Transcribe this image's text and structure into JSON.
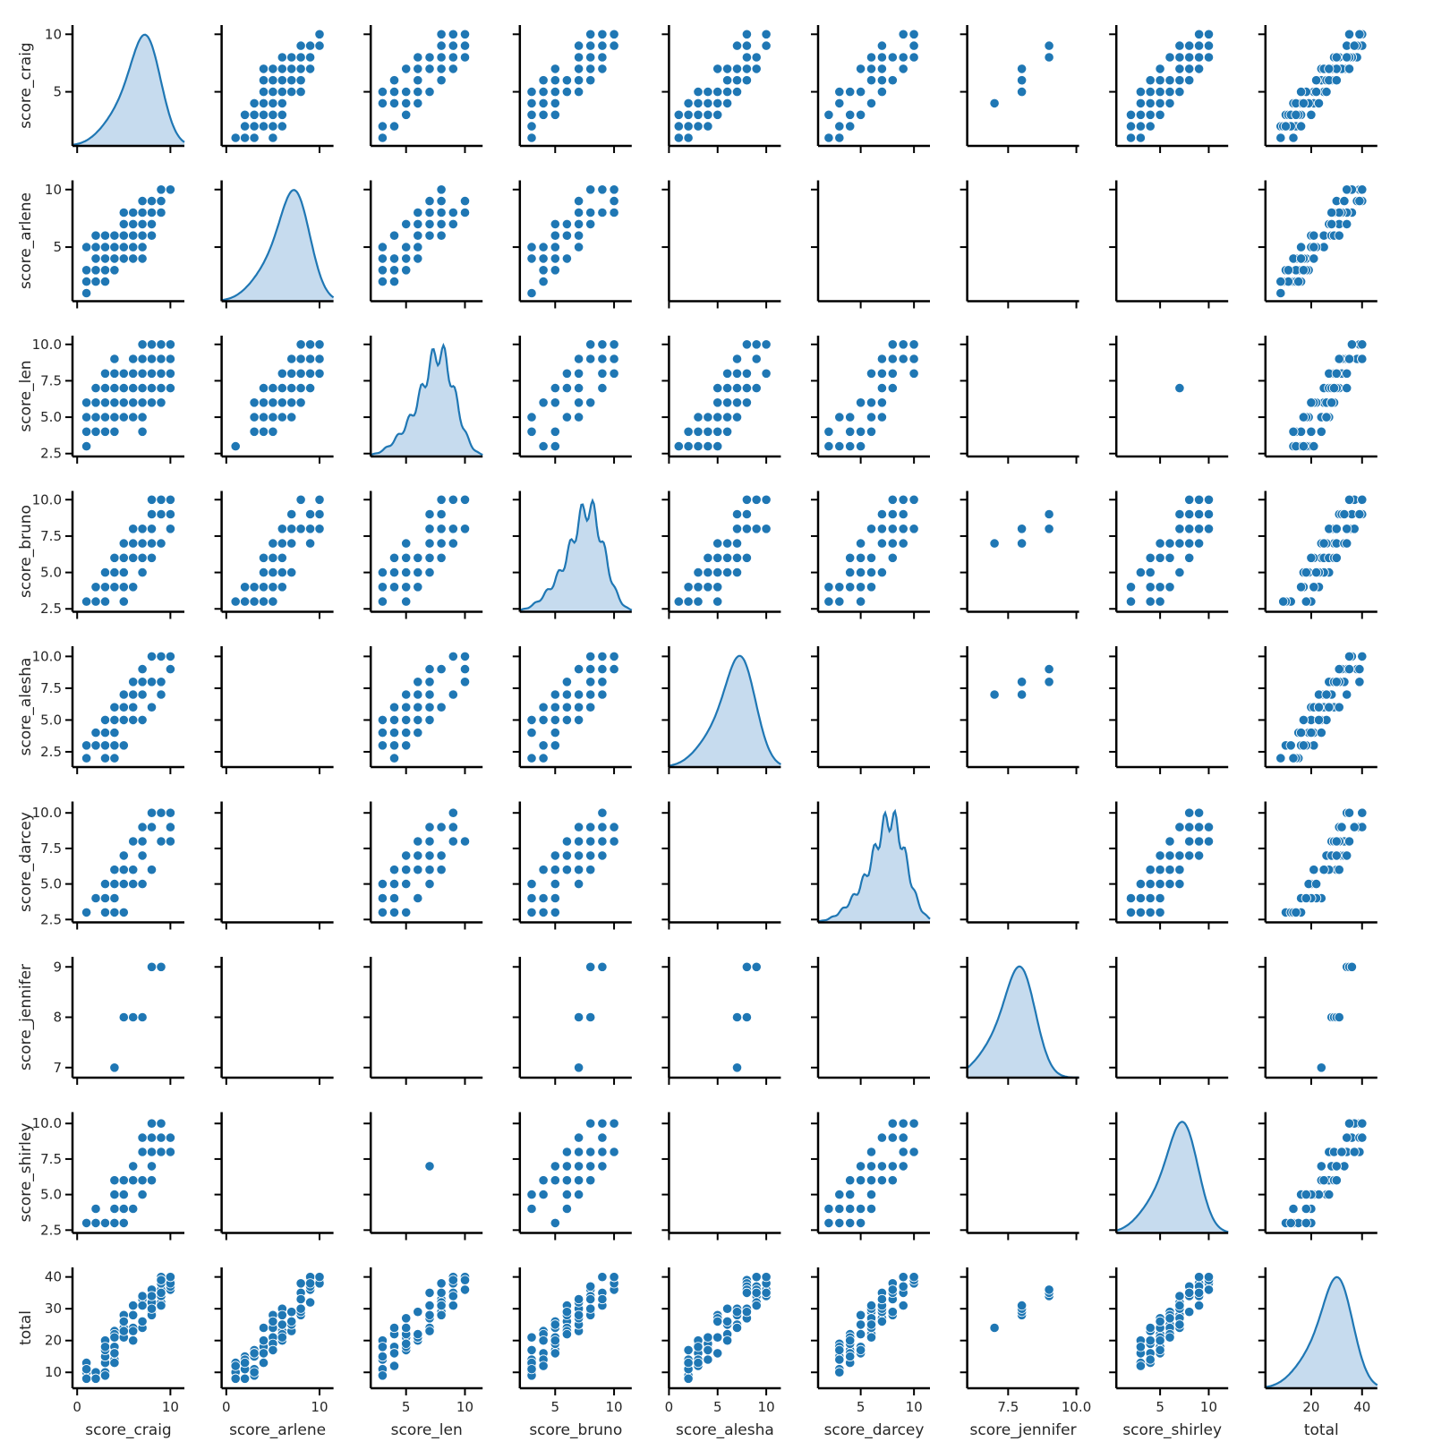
{
  "chart_data": {
    "type": "pairplot",
    "title": "",
    "variables": [
      "score_craig",
      "score_arlene",
      "score_len",
      "score_bruno",
      "score_alesha",
      "score_darcey",
      "score_jennifer",
      "score_shirley",
      "total"
    ],
    "diag_kind": "kde",
    "offdiag_kind": "scatter",
    "point_color": "#1f77b4",
    "kde_fill": "#c6dbee",
    "axis_ranges": {
      "score_craig": {
        "lim": [
          -0.5,
          11.5
        ],
        "ticks": [
          0,
          10
        ],
        "ylim": [
          0.3,
          10.8
        ],
        "yticks": [
          5,
          10
        ]
      },
      "score_arlene": {
        "lim": [
          -0.5,
          11.5
        ],
        "ticks": [
          0,
          10
        ],
        "ylim": [
          0.3,
          10.8
        ],
        "yticks": [
          5,
          10
        ]
      },
      "score_len": {
        "lim": [
          2.0,
          11.5
        ],
        "ticks": [
          5,
          10
        ],
        "ylim": [
          2.3,
          10.6
        ],
        "yticks": [
          2.5,
          5.0,
          7.5,
          10.0
        ]
      },
      "score_bruno": {
        "lim": [
          2.0,
          11.5
        ],
        "ticks": [
          5,
          10
        ],
        "ylim": [
          2.3,
          10.6
        ],
        "yticks": [
          2.5,
          5.0,
          7.5,
          10.0
        ]
      },
      "score_alesha": {
        "lim": [
          0.0,
          11.5
        ],
        "ticks": [
          0,
          5,
          10
        ],
        "ylim": [
          1.3,
          10.8
        ],
        "yticks": [
          2.5,
          5.0,
          7.5,
          10.0
        ]
      },
      "score_darcey": {
        "lim": [
          1.0,
          11.5
        ],
        "ticks": [
          5,
          10
        ],
        "ylim": [
          2.3,
          10.8
        ],
        "yticks": [
          2.5,
          5.0,
          7.5,
          10.0
        ]
      },
      "score_jennifer": {
        "lim": [
          6.0,
          10.1
        ],
        "ticks": [
          7.5,
          10.0
        ],
        "ylim": [
          6.8,
          9.2
        ],
        "yticks": [
          7,
          8,
          9
        ]
      },
      "score_shirley": {
        "lim": [
          0.5,
          12.0
        ],
        "ticks": [
          5,
          10
        ],
        "ylim": [
          2.3,
          10.8
        ],
        "yticks": [
          2.5,
          5.0,
          7.5,
          10.0
        ]
      },
      "total": {
        "lim": [
          2,
          46
        ],
        "ticks": [
          20,
          40
        ],
        "ylim": [
          5,
          43
        ],
        "yticks": [
          10,
          20,
          30,
          40
        ]
      }
    },
    "tick_labels": {
      "score_craig": [
        "0",
        "10"
      ],
      "score_arlene": [
        "0",
        "10"
      ],
      "score_len": [
        "5",
        "10"
      ],
      "score_bruno": [
        "5",
        "10"
      ],
      "score_alesha": [
        "0",
        "5",
        "10"
      ],
      "score_darcey": [
        "5",
        "10"
      ],
      "score_jennifer": [
        "7.5",
        "10.0"
      ],
      "score_shirley": [
        "5",
        "10"
      ],
      "total": [
        "20",
        "40"
      ]
    },
    "ytick_labels": {
      "score_craig": [
        "5",
        "10"
      ],
      "score_arlene": [
        "5",
        "10"
      ],
      "score_len": [
        "2.5",
        "5.0",
        "7.5",
        "10.0"
      ],
      "score_bruno": [
        "2.5",
        "5.0",
        "7.5",
        "10.0"
      ],
      "score_alesha": [
        "2.5",
        "5.0",
        "7.5",
        "10.0"
      ],
      "score_darcey": [
        "2.5",
        "5.0",
        "7.5",
        "10.0"
      ],
      "score_jennifer": [
        "7",
        "8",
        "9"
      ],
      "score_shirley": [
        "2.5",
        "5.0",
        "7.5",
        "10.0"
      ],
      "total": [
        "10",
        "20",
        "30",
        "40"
      ]
    },
    "diagonal_kde_peaks": {
      "score_craig": 7.5,
      "score_arlene": 7.5,
      "score_len": 8.0,
      "score_bruno": 8.0,
      "score_alesha": 7.5,
      "score_darcey": 8.0,
      "score_jennifer": 8.0,
      "score_shirley": 7.5,
      "total": 31
    },
    "empty_panels": [
      [
        "score_arlene",
        "score_alesha"
      ],
      [
        "score_arlene",
        "score_darcey"
      ],
      [
        "score_arlene",
        "score_jennifer"
      ],
      [
        "score_arlene",
        "score_shirley"
      ],
      [
        "score_len",
        "score_jennifer"
      ],
      [
        "score_alesha",
        "score_arlene"
      ],
      [
        "score_alesha",
        "score_darcey"
      ],
      [
        "score_alesha",
        "score_shirley"
      ],
      [
        "score_darcey",
        "score_arlene"
      ],
      [
        "score_darcey",
        "score_alesha"
      ],
      [
        "score_darcey",
        "score_jennifer"
      ],
      [
        "score_jennifer",
        "score_arlene"
      ],
      [
        "score_jennifer",
        "score_len"
      ],
      [
        "score_jennifer",
        "score_darcey"
      ],
      [
        "score_jennifer",
        "score_shirley"
      ],
      [
        "score_shirley",
        "score_arlene"
      ],
      [
        "score_shirley",
        "score_alesha"
      ],
      [
        "score_shirley",
        "score_jennifer"
      ]
    ],
    "scatter_points": {
      "0_1": [
        [
          1,
          1
        ],
        [
          2,
          1
        ],
        [
          3,
          1
        ],
        [
          5,
          1
        ],
        [
          2,
          2
        ],
        [
          3,
          2
        ],
        [
          4,
          2
        ],
        [
          5,
          2
        ],
        [
          6,
          2
        ],
        [
          2,
          3
        ],
        [
          3,
          3
        ],
        [
          4,
          3
        ],
        [
          5,
          3
        ],
        [
          6,
          3
        ],
        [
          3,
          4
        ],
        [
          4,
          4
        ],
        [
          5,
          4
        ],
        [
          6,
          4
        ],
        [
          4,
          5
        ],
        [
          5,
          5
        ],
        [
          6,
          5
        ],
        [
          7,
          5
        ],
        [
          8,
          5
        ],
        [
          4,
          6
        ],
        [
          5,
          6
        ],
        [
          6,
          6
        ],
        [
          7,
          6
        ],
        [
          8,
          6
        ],
        [
          4,
          7
        ],
        [
          5,
          7
        ],
        [
          6,
          7
        ],
        [
          7,
          7
        ],
        [
          8,
          7
        ],
        [
          9,
          7
        ],
        [
          6,
          8
        ],
        [
          7,
          8
        ],
        [
          8,
          8
        ],
        [
          9,
          8
        ],
        [
          8,
          9
        ],
        [
          9,
          9
        ],
        [
          10,
          9
        ],
        [
          10,
          10
        ]
      ],
      "1_0": [
        [
          1,
          1
        ],
        [
          1,
          2
        ],
        [
          2,
          2
        ],
        [
          3,
          2
        ],
        [
          1,
          3
        ],
        [
          2,
          3
        ],
        [
          3,
          3
        ],
        [
          4,
          3
        ],
        [
          2,
          4
        ],
        [
          3,
          4
        ],
        [
          4,
          4
        ],
        [
          5,
          4
        ],
        [
          6,
          4
        ],
        [
          7,
          4
        ],
        [
          1,
          5
        ],
        [
          2,
          5
        ],
        [
          3,
          5
        ],
        [
          4,
          5
        ],
        [
          5,
          5
        ],
        [
          6,
          5
        ],
        [
          7,
          5
        ],
        [
          2,
          6
        ],
        [
          3,
          6
        ],
        [
          4,
          6
        ],
        [
          5,
          6
        ],
        [
          6,
          6
        ],
        [
          7,
          6
        ],
        [
          8,
          6
        ],
        [
          5,
          7
        ],
        [
          6,
          7
        ],
        [
          7,
          7
        ],
        [
          8,
          7
        ],
        [
          5,
          8
        ],
        [
          6,
          8
        ],
        [
          7,
          8
        ],
        [
          8,
          8
        ],
        [
          9,
          8
        ],
        [
          7,
          9
        ],
        [
          8,
          9
        ],
        [
          9,
          9
        ],
        [
          9,
          10
        ],
        [
          10,
          10
        ]
      ],
      "2_0": [
        [
          1,
          3
        ],
        [
          1,
          4
        ],
        [
          2,
          4
        ],
        [
          3,
          4
        ],
        [
          4,
          4
        ],
        [
          7,
          4
        ],
        [
          1,
          5
        ],
        [
          2,
          5
        ],
        [
          3,
          5
        ],
        [
          4,
          5
        ],
        [
          5,
          5
        ],
        [
          6,
          5
        ],
        [
          7,
          5
        ],
        [
          1,
          6
        ],
        [
          2,
          6
        ],
        [
          3,
          6
        ],
        [
          4,
          6
        ],
        [
          5,
          6
        ],
        [
          6,
          6
        ],
        [
          7,
          6
        ],
        [
          8,
          6
        ],
        [
          9,
          6
        ],
        [
          2,
          7
        ],
        [
          3,
          7
        ],
        [
          4,
          7
        ],
        [
          5,
          7
        ],
        [
          6,
          7
        ],
        [
          7,
          7
        ],
        [
          8,
          7
        ],
        [
          9,
          7
        ],
        [
          10,
          7
        ],
        [
          3,
          8
        ],
        [
          4,
          8
        ],
        [
          5,
          8
        ],
        [
          6,
          8
        ],
        [
          7,
          8
        ],
        [
          8,
          8
        ],
        [
          9,
          8
        ],
        [
          10,
          8
        ],
        [
          4,
          9
        ],
        [
          6,
          9
        ],
        [
          7,
          9
        ],
        [
          8,
          9
        ],
        [
          9,
          9
        ],
        [
          10,
          9
        ],
        [
          7,
          10
        ],
        [
          8,
          10
        ],
        [
          9,
          10
        ],
        [
          10,
          10
        ]
      ],
      "2_1": [
        [
          1,
          3
        ],
        [
          3,
          4
        ],
        [
          4,
          4
        ],
        [
          5,
          4
        ],
        [
          3,
          5
        ],
        [
          4,
          5
        ],
        [
          5,
          5
        ],
        [
          6,
          5
        ],
        [
          7,
          5
        ],
        [
          3,
          6
        ],
        [
          4,
          6
        ],
        [
          5,
          6
        ],
        [
          6,
          6
        ],
        [
          7,
          6
        ],
        [
          8,
          6
        ],
        [
          4,
          7
        ],
        [
          5,
          7
        ],
        [
          6,
          7
        ],
        [
          7,
          7
        ],
        [
          8,
          7
        ],
        [
          9,
          7
        ],
        [
          6,
          8
        ],
        [
          7,
          8
        ],
        [
          8,
          8
        ],
        [
          9,
          8
        ],
        [
          10,
          8
        ],
        [
          7,
          9
        ],
        [
          8,
          9
        ],
        [
          9,
          9
        ],
        [
          10,
          9
        ],
        [
          8,
          10
        ],
        [
          9,
          10
        ],
        [
          10,
          10
        ]
      ]
    }
  }
}
